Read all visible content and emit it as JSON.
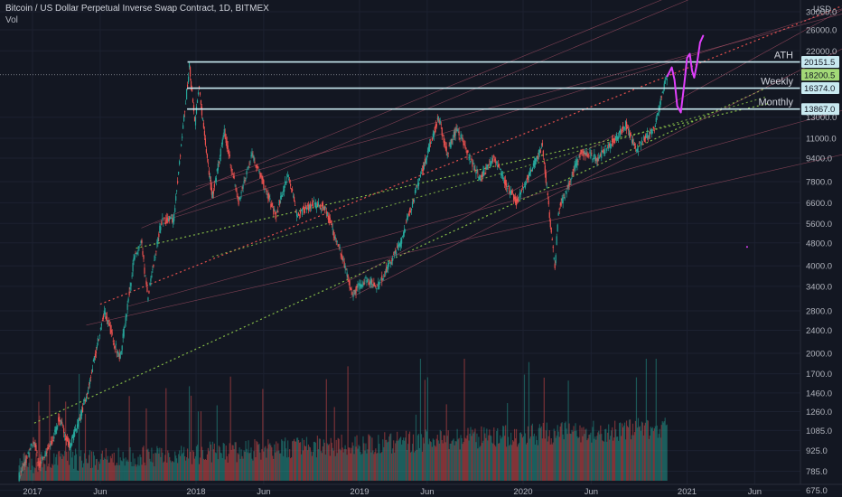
{
  "header": {
    "title": "Bitcoin / US Dollar Perpetual Inverse Swap Contract, 1D, BITMEX",
    "indicator": "Vol",
    "currency": "USD"
  },
  "colors": {
    "background": "#131722",
    "up": "#26a69a",
    "down": "#ef5350",
    "level_line": "#c8e9f0",
    "projection": "#e040fb",
    "current_price_tag": "#a3d977",
    "level_tag": "#c8e9f0",
    "red_dotted": "#ef5350",
    "green_dotted": "#8bc34a",
    "channel_lines": "#d5607a"
  },
  "chart_data": {
    "type": "candlestick",
    "scale": "log",
    "y_ticks": [
      30000,
      26000,
      22000,
      18200.5,
      16374,
      13000,
      11000,
      9400,
      7800,
      6600,
      5600,
      4800,
      4000,
      3400,
      2800,
      2400,
      2000,
      1700,
      1460,
      1260,
      1085,
      925,
      785,
      675
    ],
    "y_tick_labels": [
      "30000.0",
      "26000.0",
      "22000.0",
      "18200.5",
      "16374.0",
      "13000.0",
      "11000.0",
      "9400.0",
      "7800.0",
      "6600.0",
      "5600.0",
      "4800.0",
      "4000.0",
      "3400.0",
      "2800.0",
      "2400.0",
      "2000.0",
      "1700.0",
      "1460.0",
      "1260.0",
      "1085.0",
      "925.0",
      "785.0",
      "675.0"
    ],
    "ylim": [
      640,
      32000
    ],
    "x_ticks": [
      "2017",
      "Jun",
      "2018",
      "Jun",
      "2019",
      "Jun",
      "2020",
      "Jun",
      "2021",
      "Jun"
    ],
    "x_tick_dates": [
      "2017-01-01",
      "2017-06-01",
      "2018-01-01",
      "2018-06-01",
      "2019-01-01",
      "2019-06-01",
      "2020-01-01",
      "2020-06-01",
      "2021-01-01",
      "2021-06-01"
    ],
    "current_price": 18200.5,
    "levels": [
      {
        "label": "ATH",
        "value": 20151.5,
        "tag": "20151.5"
      },
      {
        "label": "Weekly",
        "value": 16374.0,
        "tag": "16374.0"
      },
      {
        "label": "Monthly",
        "value": 13867.0,
        "tag": "13867.0"
      }
    ],
    "price_path": [
      [
        "2016-12-01",
        750
      ],
      [
        "2017-01-05",
        1000
      ],
      [
        "2017-01-15",
        820
      ],
      [
        "2017-02-15",
        1000
      ],
      [
        "2017-03-01",
        1200
      ],
      [
        "2017-03-25",
        950
      ],
      [
        "2017-05-01",
        1400
      ],
      [
        "2017-06-10",
        2800
      ],
      [
        "2017-07-15",
        1900
      ],
      [
        "2017-08-15",
        4200
      ],
      [
        "2017-09-01",
        4800
      ],
      [
        "2017-09-15",
        3100
      ],
      [
        "2017-10-15",
        5700
      ],
      [
        "2017-11-12",
        5800
      ],
      [
        "2017-12-17",
        19500
      ],
      [
        "2017-12-30",
        12500
      ],
      [
        "2018-01-07",
        16500
      ],
      [
        "2018-02-06",
        6900
      ],
      [
        "2018-03-05",
        11500
      ],
      [
        "2018-04-06",
        6600
      ],
      [
        "2018-05-05",
        9800
      ],
      [
        "2018-06-28",
        5900
      ],
      [
        "2018-07-25",
        8300
      ],
      [
        "2018-08-14",
        6000
      ],
      [
        "2018-09-15",
        6500
      ],
      [
        "2018-10-15",
        6400
      ],
      [
        "2018-11-19",
        4500
      ],
      [
        "2018-12-15",
        3200
      ],
      [
        "2019-01-15",
        3600
      ],
      [
        "2019-02-10",
        3400
      ],
      [
        "2019-04-02",
        4800
      ],
      [
        "2019-05-15",
        8000
      ],
      [
        "2019-06-26",
        13000
      ],
      [
        "2019-07-15",
        9800
      ],
      [
        "2019-08-06",
        11900
      ],
      [
        "2019-09-01",
        9600
      ],
      [
        "2019-09-26",
        8000
      ],
      [
        "2019-10-26",
        9400
      ],
      [
        "2019-12-17",
        6600
      ],
      [
        "2020-02-13",
        10400
      ],
      [
        "2020-03-12",
        3900
      ],
      [
        "2020-03-20",
        6200
      ],
      [
        "2020-05-08",
        9800
      ],
      [
        "2020-06-15",
        9400
      ],
      [
        "2020-07-26",
        11000
      ],
      [
        "2020-08-17",
        12300
      ],
      [
        "2020-09-08",
        10000
      ],
      [
        "2020-10-20",
        12000
      ],
      [
        "2020-11-05",
        15500
      ],
      [
        "2020-11-18",
        18200
      ]
    ],
    "volume_note": "daily volume histogram, colored by candle direction"
  }
}
